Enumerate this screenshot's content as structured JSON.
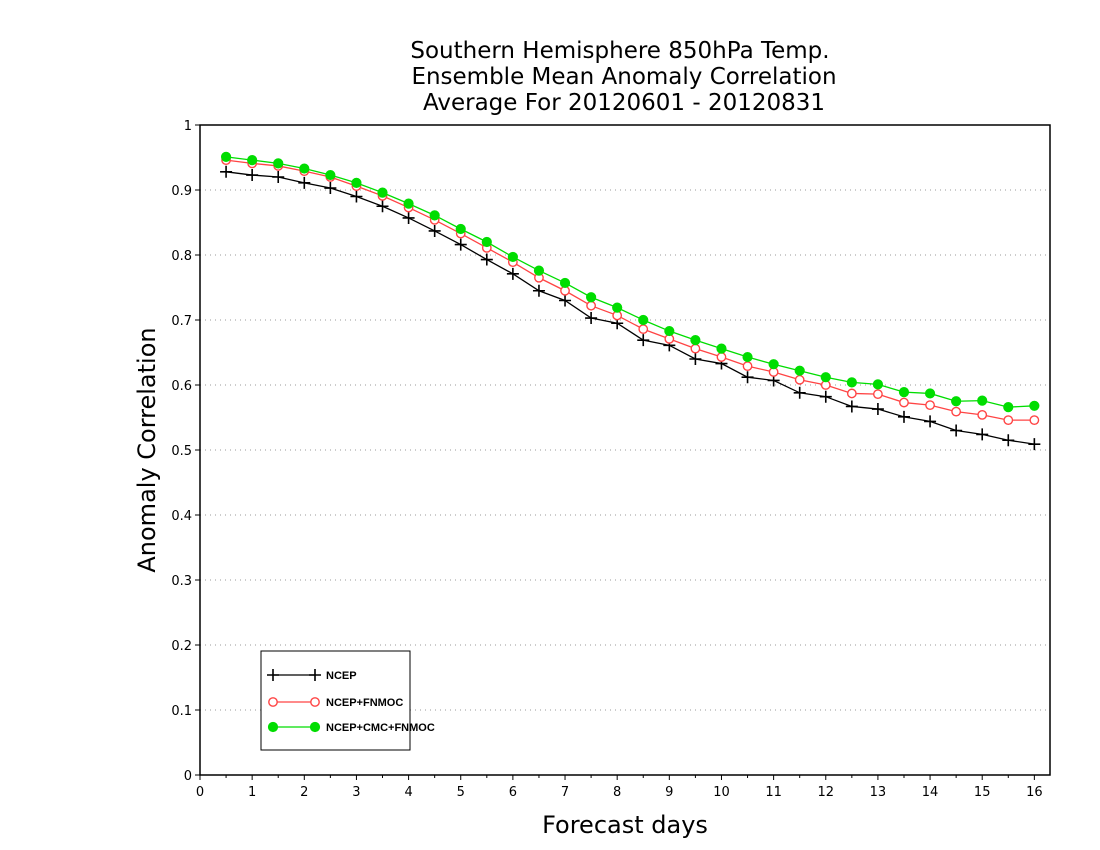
{
  "chart_data": {
    "type": "line",
    "title": [
      "Southern Hemisphere 850hPa Temp.",
      "Ensemble Mean Anomaly Correlation",
      "Average For 20120601 - 20120831"
    ],
    "xlabel": "Forecast days",
    "ylabel": "Anomaly Correlation",
    "xlim": [
      0,
      16.3
    ],
    "ylim": [
      0,
      1
    ],
    "x_ticks": [
      0,
      1,
      2,
      3,
      4,
      5,
      6,
      7,
      8,
      9,
      10,
      11,
      12,
      13,
      14,
      15,
      16
    ],
    "y_ticks": [
      0,
      0.1,
      0.2,
      0.3,
      0.4,
      0.5,
      0.6,
      0.7,
      0.8,
      0.9,
      1
    ],
    "y_tick_labels": [
      "0",
      "0.1",
      "0.2",
      "0.3",
      "0.4",
      "0.5",
      "0.6",
      "0.7",
      "0.8",
      "0.9",
      "1"
    ],
    "grid": true,
    "legend_position": "bottom-left",
    "x": [
      0.5,
      1,
      1.5,
      2,
      2.5,
      3,
      3.5,
      4,
      4.5,
      5,
      5.5,
      6,
      6.5,
      7,
      7.5,
      8,
      8.5,
      9,
      9.5,
      10,
      10.5,
      11,
      11.5,
      12,
      12.5,
      13,
      13.5,
      14,
      14.5,
      15,
      15.5,
      16
    ],
    "series": [
      {
        "name": "NCEP",
        "color": "#000000",
        "marker": "plus",
        "values": [
          0.928,
          0.923,
          0.92,
          0.911,
          0.903,
          0.89,
          0.875,
          0.857,
          0.837,
          0.816,
          0.793,
          0.771,
          0.745,
          0.73,
          0.703,
          0.695,
          0.669,
          0.661,
          0.64,
          0.633,
          0.612,
          0.607,
          0.588,
          0.582,
          0.567,
          0.563,
          0.551,
          0.544,
          0.53,
          0.524,
          0.515,
          0.509
        ]
      },
      {
        "name": "NCEP+FNMOC",
        "color": "#ff4444",
        "marker": "open-circle",
        "values": [
          0.946,
          0.941,
          0.937,
          0.929,
          0.92,
          0.906,
          0.891,
          0.873,
          0.854,
          0.833,
          0.811,
          0.789,
          0.765,
          0.745,
          0.722,
          0.707,
          0.686,
          0.671,
          0.656,
          0.643,
          0.629,
          0.62,
          0.608,
          0.6,
          0.587,
          0.586,
          0.573,
          0.569,
          0.559,
          0.554,
          0.546,
          0.546
        ]
      },
      {
        "name": "NCEP+CMC+FNMOC",
        "color": "#00dd00",
        "marker": "filled-circle",
        "values": [
          0.951,
          0.946,
          0.941,
          0.933,
          0.923,
          0.911,
          0.896,
          0.879,
          0.861,
          0.84,
          0.82,
          0.797,
          0.776,
          0.757,
          0.735,
          0.719,
          0.7,
          0.683,
          0.669,
          0.656,
          0.643,
          0.632,
          0.622,
          0.612,
          0.604,
          0.601,
          0.589,
          0.587,
          0.575,
          0.576,
          0.566,
          0.568
        ]
      }
    ]
  }
}
